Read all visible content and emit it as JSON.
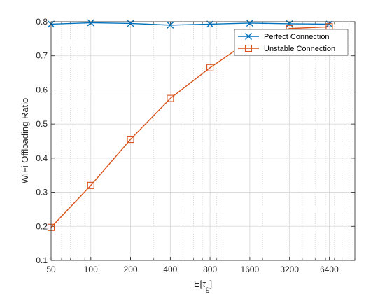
{
  "chart_data": {
    "type": "line",
    "xscale": "log",
    "x": [
      50,
      100,
      200,
      400,
      800,
      1600,
      3200,
      6400
    ],
    "xticks": [
      50,
      100,
      200,
      400,
      800,
      1600,
      3200,
      6400
    ],
    "xlim": [
      50,
      10000
    ],
    "ylim": [
      0.1,
      0.8
    ],
    "yticks": [
      0.1,
      0.2,
      0.3,
      0.4,
      0.5,
      0.6,
      0.7,
      0.8
    ],
    "xlabel_main": "E[",
    "xlabel_symbol": "τ",
    "xlabel_sub": "g",
    "xlabel_close": "]",
    "ylabel": "WiFi Offloading Ratio",
    "grid": true,
    "legend_position": "top-right",
    "series": [
      {
        "name": "Perfect Connection",
        "color": "#0072BD",
        "marker": "x",
        "values": [
          0.793,
          0.797,
          0.795,
          0.79,
          0.793,
          0.796,
          0.794,
          0.793
        ]
      },
      {
        "name": "Unstable Connection",
        "color": "#D95319",
        "marker": "square",
        "values": [
          0.197,
          0.32,
          0.455,
          0.575,
          0.665,
          0.745,
          0.78,
          0.785
        ]
      }
    ]
  }
}
